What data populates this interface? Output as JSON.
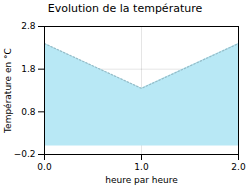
{
  "chart_data": {
    "type": "area",
    "title": "Evolution de la température",
    "x_label": "heure par heure",
    "y_label": "Température en °C",
    "x": [
      0,
      1,
      2
    ],
    "values": [
      2.4,
      1.35,
      2.4
    ],
    "color": "#b8e8f5",
    "line_style": "dotted",
    "xlim": [
      0,
      2
    ],
    "ylim": [
      -0.2,
      2.8
    ],
    "xticks": [
      0,
      1,
      2
    ],
    "yticks": [
      -0.2,
      0.8,
      1.8,
      2.8
    ],
    "grid": true
  }
}
